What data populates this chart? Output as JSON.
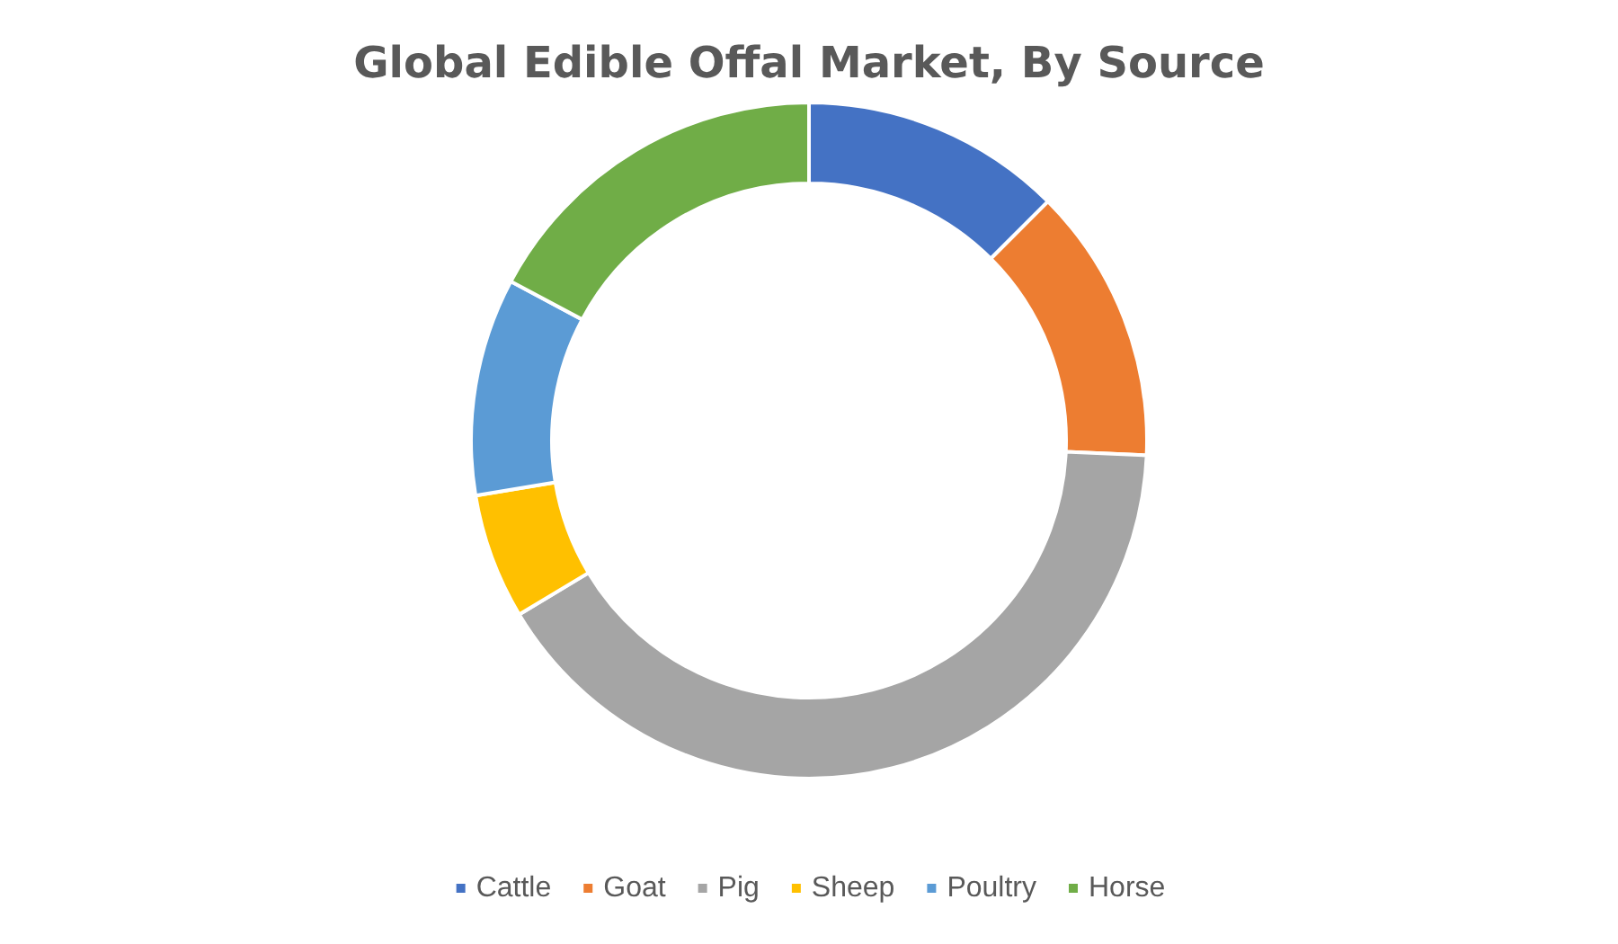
{
  "chart_data": {
    "type": "donut",
    "title": "Global Edible Offal Market, By Source",
    "categories": [
      "Cattle",
      "Goat",
      "Pig",
      "Sheep",
      "Poultry",
      "Horse"
    ],
    "values": [
      12.5,
      13.2,
      40.7,
      6.0,
      10.4,
      17.2
    ],
    "colors": [
      "#4472c4",
      "#ed7d31",
      "#a5a5a5",
      "#ffc000",
      "#5b9bd5",
      "#70ad47"
    ],
    "legend": "bottom"
  }
}
